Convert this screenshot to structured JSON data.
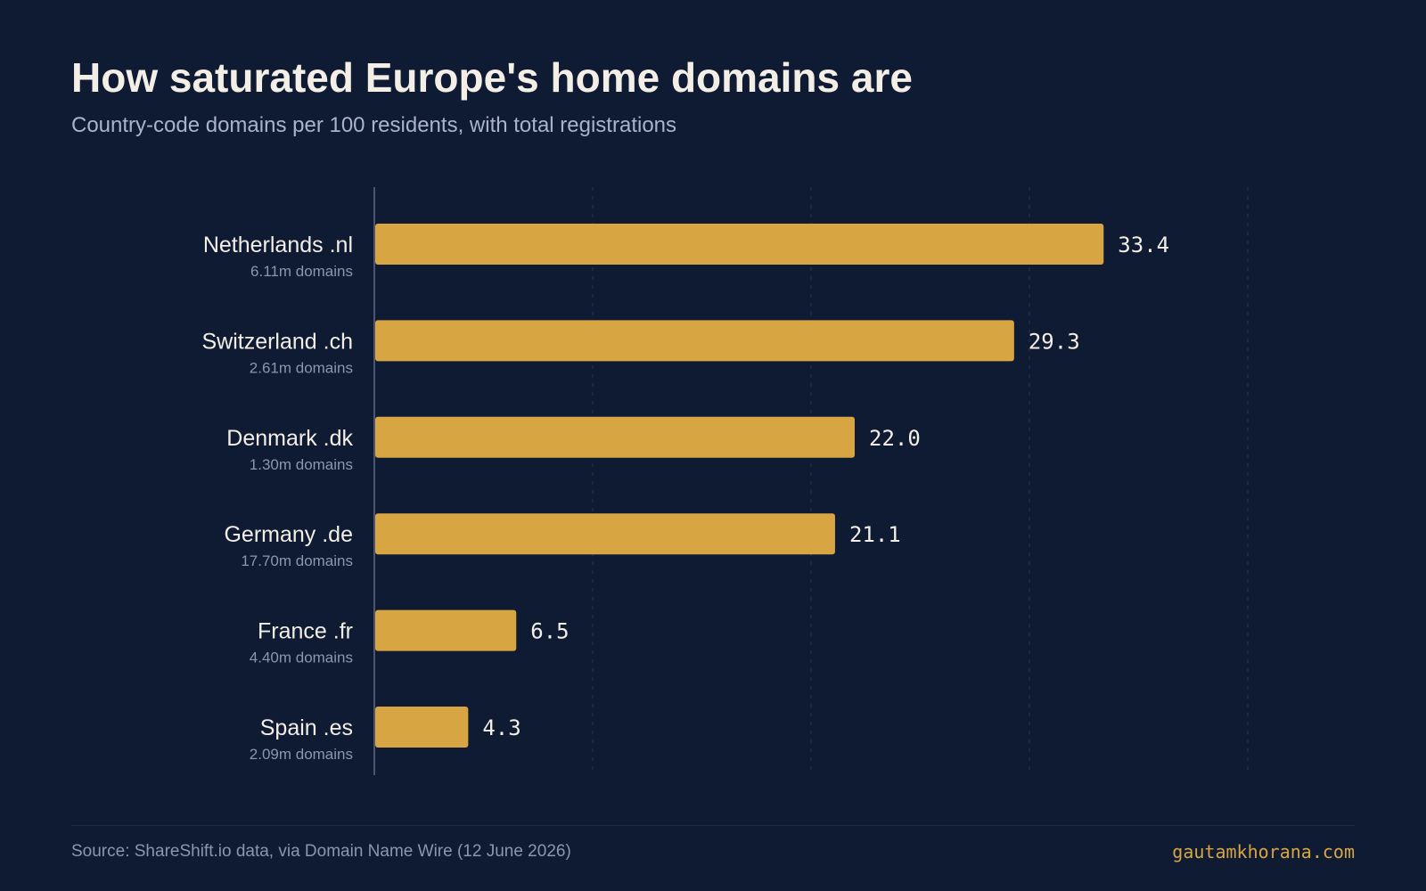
{
  "header": {
    "title": "How saturated Europe's home domains are",
    "subtitle": "Country-code domains per 100 residents, with total registrations"
  },
  "chart_data": {
    "type": "bar",
    "orientation": "horizontal",
    "categories": [
      "Netherlands .nl",
      "Switzerland .ch",
      "Denmark .dk",
      "Germany .de",
      "France .fr",
      "Spain .es"
    ],
    "sublabels": [
      "6.11m domains",
      "2.61m domains",
      "1.30m domains",
      "17.70m domains",
      "4.40m domains",
      "2.09m domains"
    ],
    "values": [
      33.4,
      29.3,
      22.0,
      21.1,
      6.5,
      4.3
    ],
    "value_labels": [
      "33.4",
      "29.3",
      "22.0",
      "21.1",
      "6.5",
      "4.3"
    ],
    "xlim": [
      0,
      40
    ],
    "grid_ticks": [
      10,
      20,
      30,
      40
    ],
    "grid": true,
    "bar_color": "#d8a543"
  },
  "footer": {
    "source": "Source: ShareShift.io data, via Domain Name Wire (12 June 2026)",
    "brand": "gautamkhorana.com"
  },
  "colors": {
    "background": "#0f1a33",
    "bar": "#d8a543",
    "title": "#f3efe6",
    "subtitle": "#aab3c8",
    "value_label": "#f3efe6",
    "category_label": "#f3efe6",
    "sublabel": "#8c96ad",
    "grid": "#2a3550",
    "axis": "#4b5670"
  }
}
